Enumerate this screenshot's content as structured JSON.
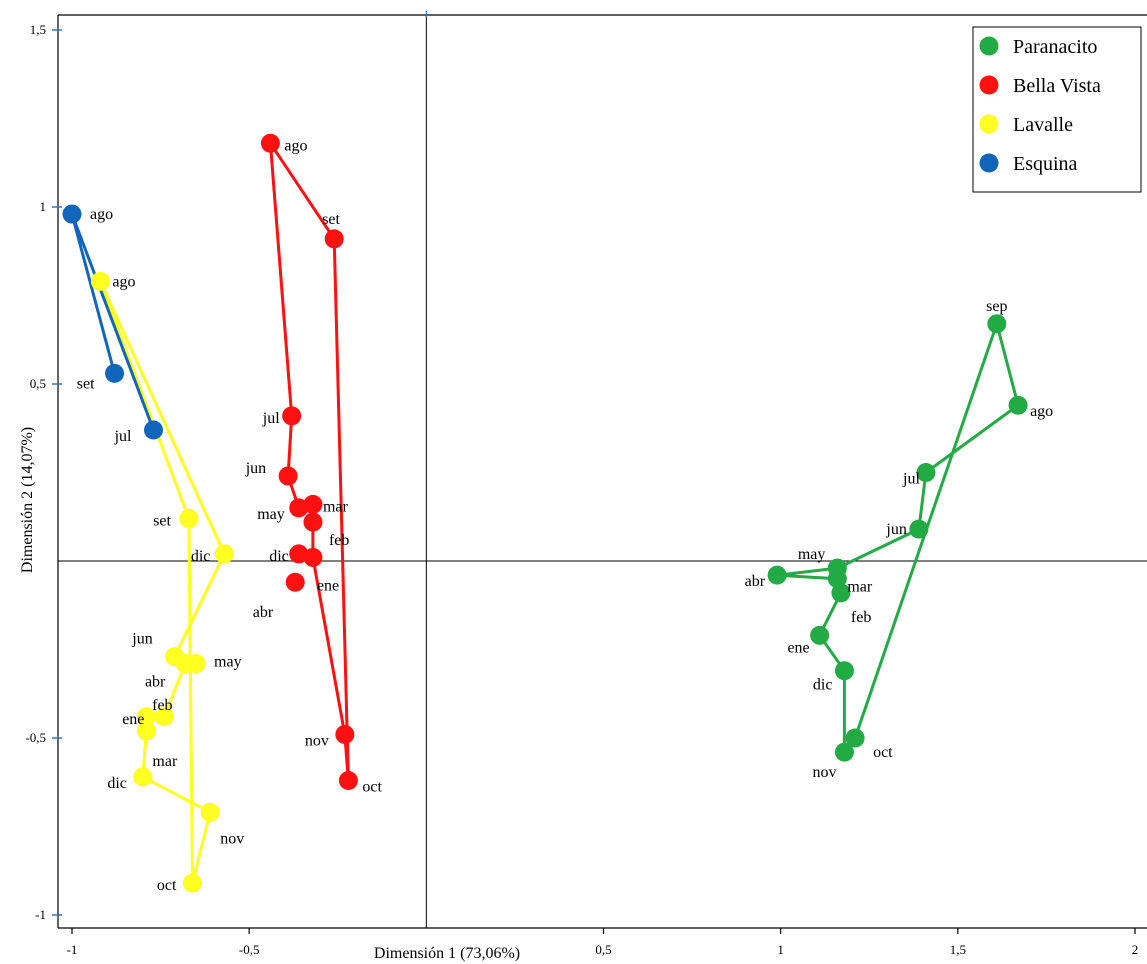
{
  "chart_data": {
    "type": "scatter",
    "title": "",
    "xlabel": "Dimensión 1 (73,06%)",
    "ylabel": "Dimensión 2 (14,07%)",
    "xlim": [
      -1,
      2
    ],
    "ylim": [
      -1,
      1.5
    ],
    "x_ticks": [
      -1,
      -0.5,
      0.5,
      1,
      1.5,
      2
    ],
    "x_tick_labels": [
      "-1",
      "-0,5",
      "0,5",
      "1",
      "1,5",
      "2"
    ],
    "y_ticks": [
      1.5,
      1,
      0.5,
      -0.5,
      -1
    ],
    "y_tick_labels": [
      "1,5",
      "1",
      "0,5",
      "-0,5",
      "-1"
    ],
    "grid": false,
    "legend_position": "top-right",
    "series": [
      {
        "name": "Paranacito",
        "color": "#22aa44",
        "path": [
          "sep",
          "ago",
          "jul",
          "jun",
          "may",
          "abr",
          "mar",
          "feb",
          "ene",
          "dic",
          "nov",
          "oct",
          "sep"
        ],
        "points": [
          {
            "label": "sep",
            "x": 1.61,
            "y": 0.67
          },
          {
            "label": "ago",
            "x": 1.67,
            "y": 0.44
          },
          {
            "label": "jul",
            "x": 1.41,
            "y": 0.25
          },
          {
            "label": "jun",
            "x": 1.39,
            "y": 0.09
          },
          {
            "label": "may",
            "x": 1.16,
            "y": -0.02
          },
          {
            "label": "abr",
            "x": 0.99,
            "y": -0.04
          },
          {
            "label": "mar",
            "x": 1.16,
            "y": -0.05
          },
          {
            "label": "feb",
            "x": 1.17,
            "y": -0.09
          },
          {
            "label": "ene",
            "x": 1.11,
            "y": -0.21
          },
          {
            "label": "dic",
            "x": 1.18,
            "y": -0.31
          },
          {
            "label": "nov",
            "x": 1.18,
            "y": -0.54
          },
          {
            "label": "oct",
            "x": 1.21,
            "y": -0.5
          }
        ]
      },
      {
        "name": "Bella Vista",
        "color": "#ff1111",
        "path": [
          "ago",
          "set",
          "oct",
          "nov",
          "ene",
          "feb",
          "mar",
          "may",
          "jun",
          "jul",
          "ago"
        ],
        "points": [
          {
            "label": "ago",
            "x": -0.44,
            "y": 1.18
          },
          {
            "label": "set",
            "x": -0.26,
            "y": 0.91
          },
          {
            "label": "jul",
            "x": -0.38,
            "y": 0.41
          },
          {
            "label": "jun",
            "x": -0.39,
            "y": 0.24
          },
          {
            "label": "mar",
            "x": -0.32,
            "y": 0.16
          },
          {
            "label": "may",
            "x": -0.36,
            "y": 0.15
          },
          {
            "label": "feb",
            "x": -0.32,
            "y": 0.11
          },
          {
            "label": "dic",
            "x": -0.36,
            "y": 0.02
          },
          {
            "label": "ene",
            "x": -0.32,
            "y": 0.01
          },
          {
            "label": "abr",
            "x": -0.37,
            "y": -0.06
          },
          {
            "label": "nov",
            "x": -0.23,
            "y": -0.49
          },
          {
            "label": "oct",
            "x": -0.22,
            "y": -0.62
          }
        ]
      },
      {
        "name": "Lavalle",
        "color": "#ffff22",
        "path": [
          "ago",
          "set",
          "oct",
          "nov",
          "dic",
          "mar",
          "ene",
          "feb",
          "abr",
          "may",
          "jun",
          "dic",
          "ago"
        ],
        "points": [
          {
            "label": "ago",
            "x": -0.92,
            "y": 0.79
          },
          {
            "label": "set",
            "x": -0.67,
            "y": 0.12
          },
          {
            "label": "dic",
            "x": -0.57,
            "y": 0.02
          },
          {
            "label": "jun",
            "x": -0.71,
            "y": -0.27
          },
          {
            "label": "abr",
            "x": -0.68,
            "y": -0.29
          },
          {
            "label": "may",
            "x": -0.65,
            "y": -0.29
          },
          {
            "label": "feb",
            "x": -0.74,
            "y": -0.44
          },
          {
            "label": "ene",
            "x": -0.79,
            "y": -0.44
          },
          {
            "label": "mar",
            "x": -0.79,
            "y": -0.48
          },
          {
            "label": "dic",
            "x": -0.8,
            "y": -0.61
          },
          {
            "label": "nov",
            "x": -0.61,
            "y": -0.71
          },
          {
            "label": "oct",
            "x": -0.66,
            "y": -0.91
          }
        ]
      },
      {
        "name": "Esquina",
        "color": "#1166bb",
        "path": [
          "ago",
          "set",
          "ago",
          "jul"
        ],
        "points": [
          {
            "label": "ago",
            "x": -1.0,
            "y": 0.98
          },
          {
            "label": "set",
            "x": -0.88,
            "y": 0.53
          },
          {
            "label": "jul",
            "x": -0.77,
            "y": 0.37
          }
        ]
      }
    ]
  }
}
